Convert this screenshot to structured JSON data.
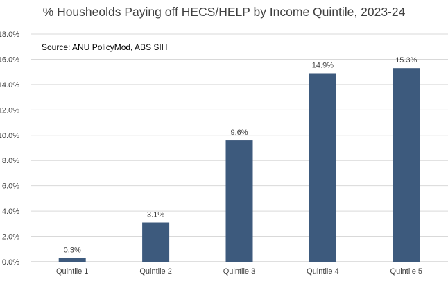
{
  "chart_data": {
    "type": "bar",
    "title": "% Housheolds Paying off HECS/HELP by Income Quintile, 2023-24",
    "annotation": "Source: ANU PolicyMod, ABS SIH",
    "categories": [
      "Quintile 1",
      "Quintile 2",
      "Quintile 3",
      "Quintile 4",
      "Quintile 5"
    ],
    "values": [
      0.3,
      3.1,
      9.6,
      14.9,
      15.3
    ],
    "data_labels": [
      "0.3%",
      "3.1%",
      "9.6%",
      "14.9%",
      "15.3%"
    ],
    "ylim": [
      0,
      18
    ],
    "yticks": [
      0,
      2,
      4,
      6,
      8,
      10,
      12,
      14,
      16,
      18
    ],
    "ytick_labels": [
      "0.0%",
      "2.0%",
      "4.0%",
      "6.0%",
      "8.0%",
      "10.0%",
      "12.0%",
      "14.0%",
      "16.0%",
      "18.0%"
    ],
    "xlabel": "",
    "ylabel": "",
    "grid": true,
    "legend": "none",
    "colors": {
      "bar": "#3d5a7d",
      "grid": "#d9d9d9",
      "text": "#404040",
      "title": "#404040"
    }
  }
}
